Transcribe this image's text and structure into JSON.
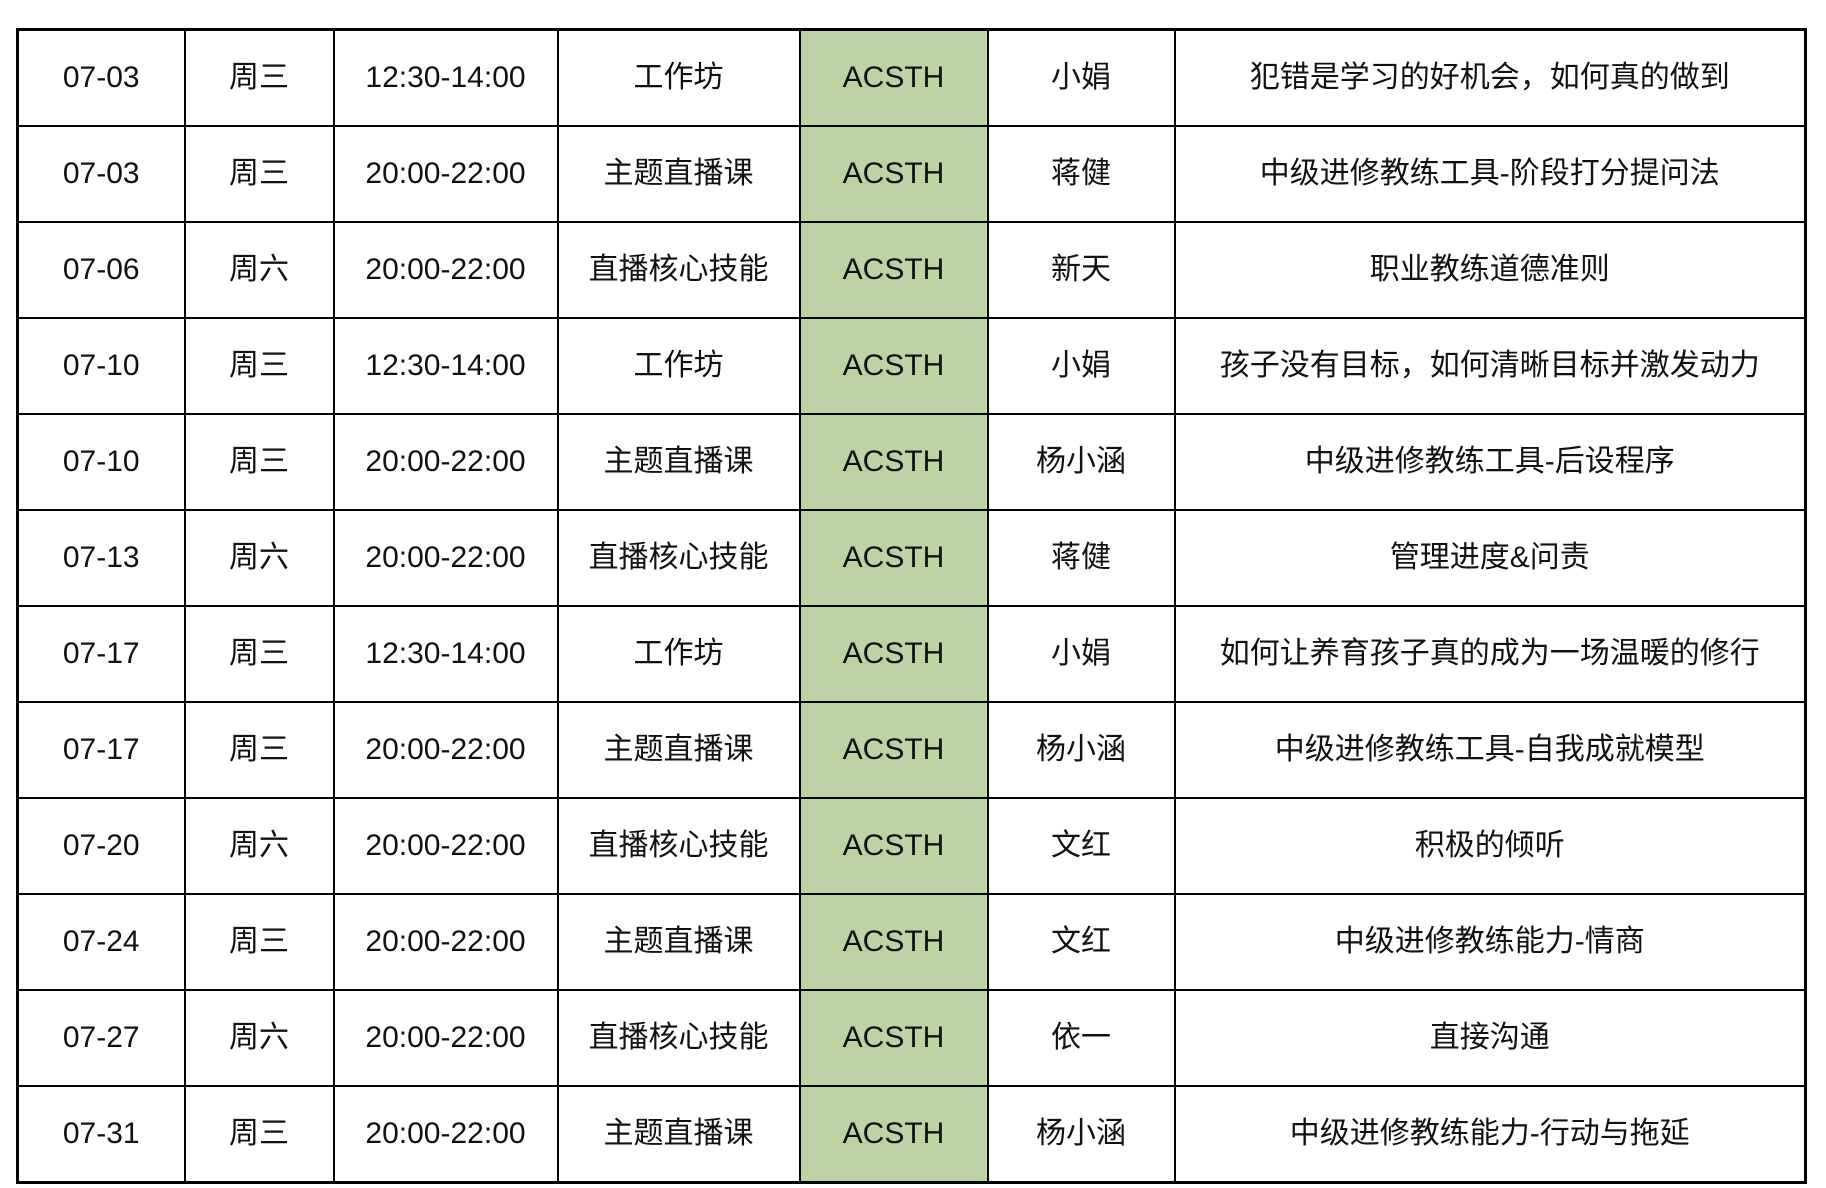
{
  "table": {
    "track_highlight_color": "#bdd3a5",
    "columns": [
      "date",
      "day",
      "time",
      "type",
      "track",
      "instructor",
      "topic"
    ],
    "rows": [
      {
        "date": "07-03",
        "day": "周三",
        "time": "12:30-14:00",
        "type": "工作坊",
        "track": "ACSTH",
        "instructor": "小娟",
        "topic": "犯错是学习的好机会，如何真的做到"
      },
      {
        "date": "07-03",
        "day": "周三",
        "time": "20:00-22:00",
        "type": "主题直播课",
        "track": "ACSTH",
        "instructor": "蒋健",
        "topic": "中级进修教练工具-阶段打分提问法"
      },
      {
        "date": "07-06",
        "day": "周六",
        "time": "20:00-22:00",
        "type": "直播核心技能",
        "track": "ACSTH",
        "instructor": "新天",
        "topic": "职业教练道德准则"
      },
      {
        "date": "07-10",
        "day": "周三",
        "time": "12:30-14:00",
        "type": "工作坊",
        "track": "ACSTH",
        "instructor": "小娟",
        "topic": "孩子没有目标，如何清晰目标并激发动力"
      },
      {
        "date": "07-10",
        "day": "周三",
        "time": "20:00-22:00",
        "type": "主题直播课",
        "track": "ACSTH",
        "instructor": "杨小涵",
        "topic": "中级进修教练工具-后设程序"
      },
      {
        "date": "07-13",
        "day": "周六",
        "time": "20:00-22:00",
        "type": "直播核心技能",
        "track": "ACSTH",
        "instructor": "蒋健",
        "topic": "管理进度&问责"
      },
      {
        "date": "07-17",
        "day": "周三",
        "time": "12:30-14:00",
        "type": "工作坊",
        "track": "ACSTH",
        "instructor": "小娟",
        "topic": "如何让养育孩子真的成为一场温暖的修行"
      },
      {
        "date": "07-17",
        "day": "周三",
        "time": "20:00-22:00",
        "type": "主题直播课",
        "track": "ACSTH",
        "instructor": "杨小涵",
        "topic": "中级进修教练工具-自我成就模型"
      },
      {
        "date": "07-20",
        "day": "周六",
        "time": "20:00-22:00",
        "type": "直播核心技能",
        "track": "ACSTH",
        "instructor": "文红",
        "topic": "积极的倾听"
      },
      {
        "date": "07-24",
        "day": "周三",
        "time": "20:00-22:00",
        "type": "主题直播课",
        "track": "ACSTH",
        "instructor": "文红",
        "topic": "中级进修教练能力-情商"
      },
      {
        "date": "07-27",
        "day": "周六",
        "time": "20:00-22:00",
        "type": "直播核心技能",
        "track": "ACSTH",
        "instructor": "依一",
        "topic": "直接沟通"
      },
      {
        "date": "07-31",
        "day": "周三",
        "time": "20:00-22:00",
        "type": "主题直播课",
        "track": "ACSTH",
        "instructor": "杨小涵",
        "topic": "中级进修教练能力-行动与拖延"
      }
    ]
  }
}
